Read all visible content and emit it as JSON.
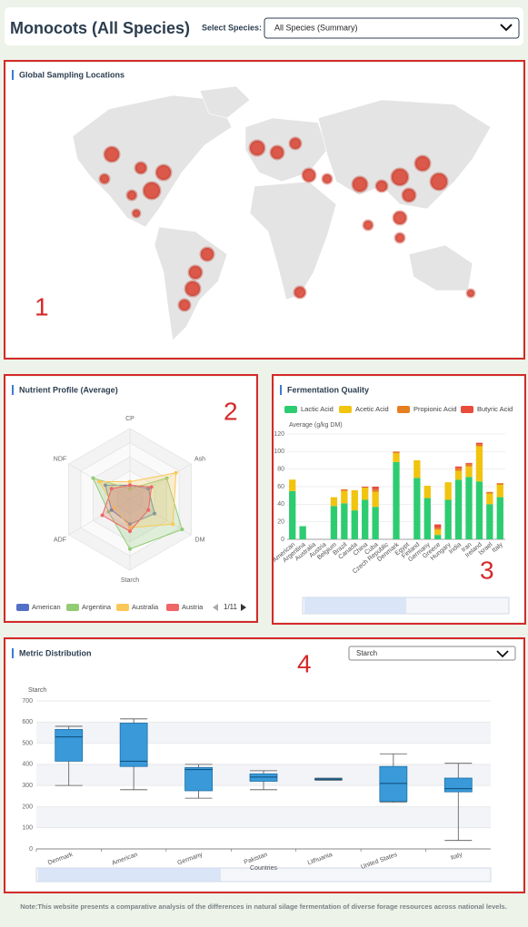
{
  "header": {
    "title": "Monocots (All Species)",
    "select_label": "Select Species:",
    "select_value": "All Species (Summary)"
  },
  "map": {
    "title": "Global Sampling Locations"
  },
  "annotations": [
    "1",
    "2",
    "3",
    "4"
  ],
  "footer": "Note:This website presents a comparative analysis of the differences in natural silage fermentation of diverse forage resources across national levels.",
  "chart_data": [
    {
      "type": "radar",
      "title": "Nutrient Profile (Average)",
      "indicators": [
        "CP",
        "Ash",
        "DM",
        "Starch",
        "ADF",
        "NDF"
      ],
      "rlim": [
        0,
        100
      ],
      "series": [
        {
          "name": "American",
          "color": "#5470c6",
          "values": [
            20,
            30,
            40,
            35,
            30,
            40
          ]
        },
        {
          "name": "Argentina",
          "color": "#91cc75",
          "values": [
            15,
            60,
            85,
            70,
            35,
            60
          ]
        },
        {
          "name": "Australia",
          "color": "#fac858",
          "values": [
            25,
            75,
            70,
            40,
            25,
            50
          ]
        },
        {
          "name": "Austria",
          "color": "#ee6666",
          "values": [
            20,
            35,
            30,
            45,
            45,
            30
          ]
        }
      ],
      "legend_page": "1/11"
    },
    {
      "type": "bar",
      "stacked": true,
      "title": "Fermentation Quality",
      "ylabel": "Average (g/kg DM)",
      "categories": [
        "American",
        "Argentina",
        "Australia",
        "Austria",
        "Belgium",
        "Brazil",
        "Canada",
        "China",
        "Cuba",
        "Czech Republic",
        "Denmark",
        "Egypt",
        "Finland",
        "Germany",
        "Greece",
        "Hungary",
        "India",
        "Iran",
        "Ireland",
        "Israel",
        "Italy"
      ],
      "series": [
        {
          "name": "Lactic Acid",
          "color": "#2ecc71",
          "values": [
            55,
            15,
            0,
            0,
            38,
            41,
            33,
            45,
            37,
            0,
            88,
            0,
            70,
            47,
            5,
            45,
            68,
            71,
            66,
            40,
            48
          ]
        },
        {
          "name": "Acetic Acid",
          "color": "#f1c40f",
          "values": [
            13,
            0,
            0,
            0,
            10,
            14,
            23,
            14,
            17,
            0,
            10,
            0,
            20,
            14,
            6,
            20,
            10,
            12,
            40,
            12,
            14
          ]
        },
        {
          "name": "Propionic Acid",
          "color": "#e67e22",
          "values": [
            0,
            0,
            0,
            0,
            0,
            2,
            0,
            0,
            3,
            0,
            2,
            0,
            0,
            0,
            2,
            0,
            3,
            3,
            2,
            2,
            2
          ]
        },
        {
          "name": "Butyric Acid",
          "color": "#e74c3c",
          "values": [
            0,
            0,
            0,
            0,
            0,
            0,
            0,
            1,
            3,
            0,
            0,
            0,
            0,
            0,
            4,
            0,
            2,
            1,
            2,
            0,
            0
          ]
        }
      ],
      "ylim": [
        0,
        120
      ],
      "yticks": [
        0,
        20,
        40,
        60,
        80,
        100,
        120
      ],
      "grid": true
    },
    {
      "type": "boxplot",
      "title": "Metric Distribution",
      "dropdown": "Starch",
      "ylabel": "Starch",
      "xlabel": "Countries",
      "categories": [
        "Denmark",
        "American",
        "Germany",
        "Pakistan",
        "Lithuania",
        "United States",
        "Italy"
      ],
      "boxes": [
        [
          300,
          415,
          530,
          565,
          580
        ],
        [
          280,
          390,
          415,
          595,
          615
        ],
        [
          240,
          275,
          375,
          385,
          400
        ],
        [
          280,
          320,
          340,
          355,
          370
        ],
        [
          325,
          328,
          330,
          332,
          335
        ],
        [
          220,
          225,
          310,
          390,
          450
        ],
        [
          40,
          270,
          285,
          335,
          405
        ]
      ],
      "color": "#3a9ad9",
      "ylim": [
        0,
        700
      ],
      "yticks": [
        0,
        100,
        200,
        300,
        400,
        500,
        600,
        700
      ],
      "grid": true
    }
  ]
}
